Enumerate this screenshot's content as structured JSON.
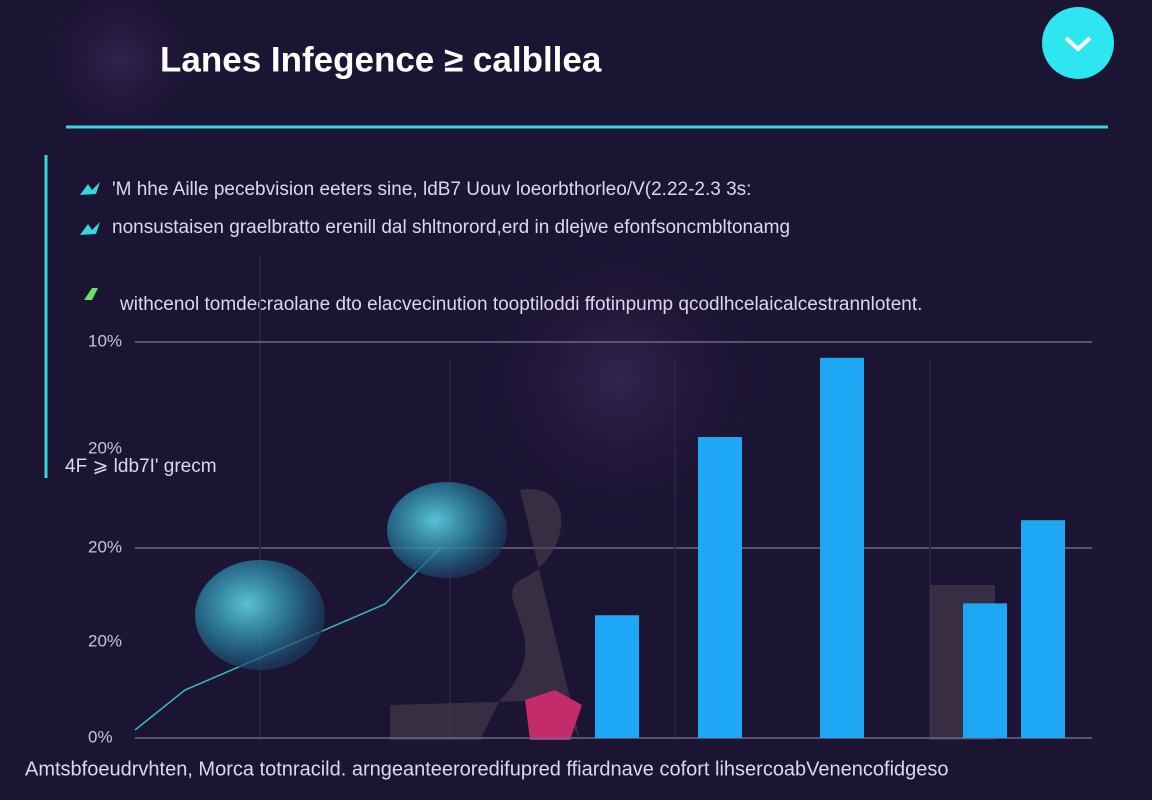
{
  "header": {
    "title": "Lanes Infegence ≥ calbllea"
  },
  "bullets": [
    "'M hhe Aille pecebvision eeters sine, ldB7 Uouv loeorbthorleo/V(2.22-2.3 3s:",
    "nonsustaisen graelbratto erenill dal shltnorord,erd in dlejwe efonfsoncmbltonamg",
    "withcenol tomdecraolane dto elacvecinution tooptiloddi ffotinpump qcodlhcelaicalcestrannlotent."
  ],
  "side_label": "4F ⩾ ldb7I' grecm",
  "footer": "Amtsbfoeudrvhten,  Morca totnracild. arngeanteeroredifupred ffiardnave cofort lihsercoabVenencofidgeso",
  "chart_data": {
    "type": "bar",
    "categories": [
      null,
      null,
      null,
      null,
      null
    ],
    "values": [
      3.1,
      7.6,
      9.6,
      3.4,
      5.5
    ],
    "color": "#1ea7f5",
    "ylim": [
      0,
      10
    ],
    "yticks": [
      {
        "value": 0,
        "label": "0%"
      },
      {
        "value": 10,
        "label": "10%"
      }
    ],
    "extra_axis_labels": [
      "20%",
      "20%",
      "20%"
    ],
    "grid": true
  }
}
